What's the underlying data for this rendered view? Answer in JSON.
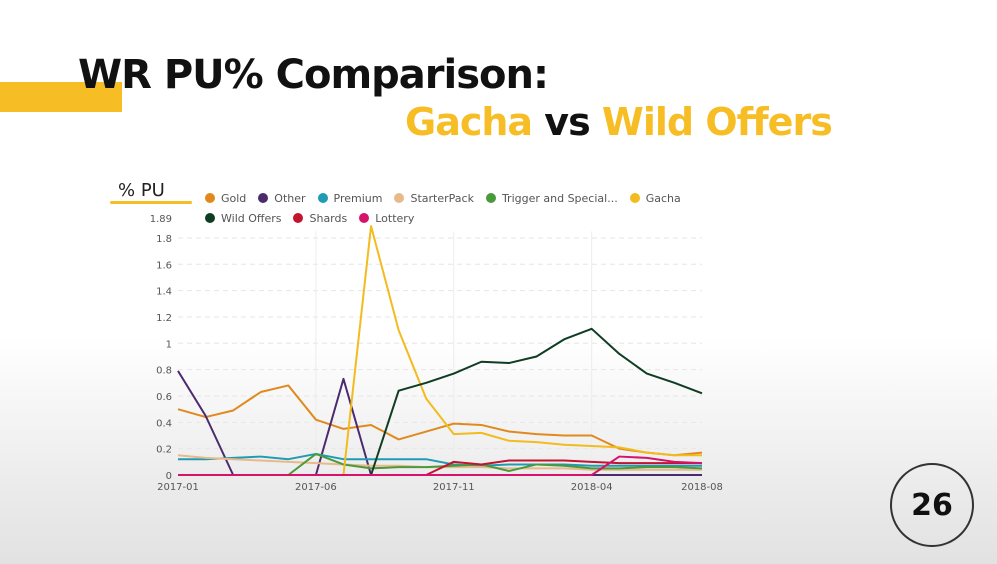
{
  "slide": {
    "title_line1": "WR PU% Comparison:",
    "title_line2_a": "Gacha",
    "title_line2_vs": "vs",
    "title_line2_b": "Wild Offers",
    "page_number": "26",
    "accent_color": "#f7bd25"
  },
  "chart_data": {
    "type": "line",
    "title": "WR PU% Comparison: Gacha vs Wild Offers",
    "xlabel": "",
    "ylabel": "% PU",
    "ylim": [
      0,
      1.89
    ],
    "y_ticks": [
      "0",
      "0.2",
      "0.4",
      "0.6",
      "0.8",
      "1",
      "1.2",
      "1.4",
      "1.6",
      "1.8",
      "1.89"
    ],
    "x_tick_labels": [
      "2017-01",
      "2017-06",
      "2017-11",
      "2018-04",
      "2018-08"
    ],
    "grid": true,
    "legend_position": "top",
    "x": [
      "2017-01",
      "2017-02",
      "2017-03",
      "2017-04",
      "2017-05",
      "2017-06",
      "2017-07",
      "2017-08",
      "2017-09",
      "2017-10",
      "2017-11",
      "2017-12",
      "2018-01",
      "2018-02",
      "2018-03",
      "2018-04",
      "2018-05",
      "2018-06",
      "2018-07",
      "2018-08"
    ],
    "series": [
      {
        "name": "Gold",
        "color": "#e08a1e",
        "values": [
          0.5,
          0.44,
          0.49,
          0.63,
          0.68,
          0.42,
          0.35,
          0.38,
          0.27,
          0.33,
          0.39,
          0.38,
          0.33,
          0.31,
          0.3,
          0.3,
          0.2,
          0.17,
          0.15,
          0.17
        ]
      },
      {
        "name": "Other",
        "color": "#4b2a6e",
        "values": [
          0.79,
          0.45,
          0,
          0,
          0,
          0,
          0.73,
          0,
          0,
          0,
          0,
          0,
          0,
          0,
          0,
          0,
          0,
          0,
          0,
          0
        ]
      },
      {
        "name": "Premium",
        "color": "#1f9bb3",
        "values": [
          0.12,
          0.12,
          0.13,
          0.14,
          0.12,
          0.16,
          0.12,
          0.12,
          0.12,
          0.12,
          0.08,
          0.07,
          0.08,
          0.08,
          0.08,
          0.07,
          0.07,
          0.07,
          0.07,
          0.07
        ]
      },
      {
        "name": "StarterPack",
        "color": "#e8b98a",
        "values": [
          0.15,
          0.13,
          0.12,
          0.11,
          0.1,
          0.09,
          0.08,
          0.07,
          0.07,
          0.06,
          0.06,
          0.06,
          0.05,
          0.05,
          0.05,
          0.04,
          0.04,
          0.04,
          0.04,
          0.04
        ]
      },
      {
        "name": "Trigger and Special...",
        "color": "#4a9a3c",
        "values": [
          0,
          0,
          0,
          0,
          0,
          0.16,
          0.08,
          0.05,
          0.06,
          0.06,
          0.07,
          0.08,
          0.03,
          0.08,
          0.07,
          0.05,
          0.05,
          0.06,
          0.06,
          0.05
        ]
      },
      {
        "name": "Gacha",
        "color": "#f2bb1f",
        "values": [
          0,
          0,
          0,
          0,
          0,
          0,
          0,
          1.89,
          1.1,
          0.58,
          0.31,
          0.32,
          0.26,
          0.25,
          0.23,
          0.22,
          0.21,
          0.17,
          0.15,
          0.15
        ]
      },
      {
        "name": "Wild Offers",
        "color": "#0f3d24",
        "values": [
          0,
          0,
          0,
          0,
          0,
          0,
          0,
          0,
          0.64,
          0.7,
          0.77,
          0.86,
          0.85,
          0.9,
          1.03,
          1.11,
          0.92,
          0.77,
          0.7,
          0.62
        ]
      },
      {
        "name": "Shards",
        "color": "#c4122f",
        "values": [
          0,
          0,
          0,
          0,
          0,
          0,
          0,
          0,
          0,
          0,
          0.1,
          0.08,
          0.11,
          0.11,
          0.11,
          0.1,
          0.09,
          0.09,
          0.09,
          0.09
        ]
      },
      {
        "name": "Lottery",
        "color": "#d6126b",
        "values": [
          0,
          0,
          0,
          0,
          0,
          0,
          0,
          0,
          0,
          0,
          0,
          0,
          0,
          0,
          0,
          0,
          0.14,
          0.13,
          0.1,
          0.09
        ]
      }
    ]
  }
}
